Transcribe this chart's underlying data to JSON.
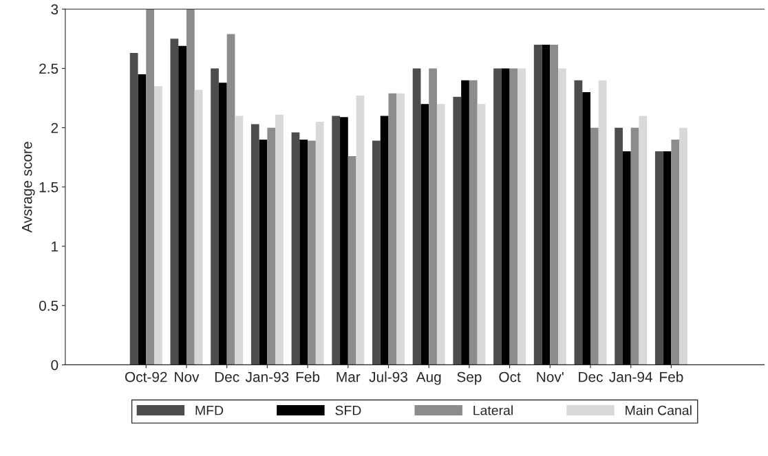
{
  "chart_data": {
    "type": "bar",
    "ylabel": "Avsrage score",
    "categories": [
      "Oct-92",
      "Nov",
      "Dec",
      "Jan-93",
      "Feb",
      "Mar",
      "Jul-93",
      "Aug",
      "Sep",
      "Oct",
      "Nov'",
      "Dec",
      "Jan-94",
      "Feb"
    ],
    "series": [
      {
        "name": "MFD",
        "color": "#4d4d4d",
        "values": [
          2.63,
          2.75,
          2.5,
          2.03,
          1.96,
          2.1,
          1.89,
          2.5,
          2.26,
          2.5,
          2.7,
          2.4,
          2.0,
          1.8
        ]
      },
      {
        "name": "SFD",
        "color": "#000000",
        "values": [
          2.45,
          2.69,
          2.38,
          1.9,
          1.9,
          2.09,
          2.1,
          2.2,
          2.4,
          2.5,
          2.7,
          2.3,
          1.8,
          1.8
        ]
      },
      {
        "name": "Lateral",
        "color": "#8c8c8c",
        "values": [
          3.0,
          3.0,
          2.79,
          2.0,
          1.89,
          1.76,
          2.29,
          2.5,
          2.4,
          2.5,
          2.7,
          2.0,
          2.0,
          1.9
        ]
      },
      {
        "name": "Main Canal",
        "color": "#d9d9d9",
        "values": [
          2.35,
          2.32,
          2.1,
          2.11,
          2.05,
          2.27,
          2.29,
          2.2,
          2.2,
          2.5,
          2.5,
          2.4,
          2.1,
          2.0
        ]
      }
    ],
    "ylim": [
      0,
      3
    ],
    "yticks": [
      0,
      0.5,
      1,
      1.5,
      2,
      2.5,
      3
    ],
    "grid": false,
    "legend": "bottom"
  }
}
